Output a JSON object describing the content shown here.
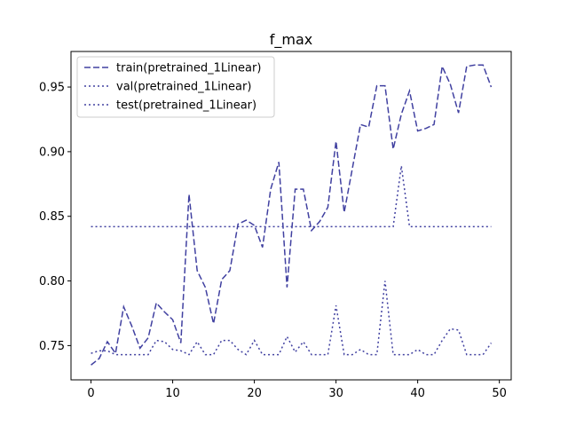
{
  "chart_data": {
    "type": "line",
    "title": "f_max",
    "xlabel": "",
    "ylabel": "",
    "xlim": [
      -2.45,
      51.45
    ],
    "ylim": [
      0.7235,
      0.9775
    ],
    "xticks": [
      0,
      10,
      20,
      30,
      40,
      50
    ],
    "yticks": [
      0.75,
      0.8,
      0.85,
      0.9,
      0.95
    ],
    "ytick_labels": [
      "0.75",
      "0.80",
      "0.85",
      "0.90",
      "0.95"
    ],
    "legend_position": "upper-left",
    "grid": false,
    "line_color": "#4040a0",
    "series": [
      {
        "name": "train(pretrained_1Linear)",
        "style": "dashed",
        "x": [
          0,
          1,
          2,
          3,
          4,
          5,
          6,
          7,
          8,
          9,
          10,
          11,
          12,
          13,
          14,
          15,
          16,
          17,
          18,
          19,
          20,
          21,
          22,
          23,
          24,
          25,
          26,
          27,
          28,
          29,
          30,
          31,
          32,
          33,
          34,
          35,
          36,
          37,
          38,
          39,
          40,
          41,
          42,
          43,
          44,
          45,
          46,
          47,
          48,
          49
        ],
        "values": [
          0.735,
          0.74,
          0.753,
          0.744,
          0.78,
          0.765,
          0.748,
          0.756,
          0.783,
          0.776,
          0.77,
          0.752,
          0.867,
          0.808,
          0.795,
          0.767,
          0.801,
          0.808,
          0.844,
          0.847,
          0.843,
          0.826,
          0.871,
          0.892,
          0.795,
          0.871,
          0.871,
          0.839,
          0.846,
          0.857,
          0.908,
          0.853,
          0.887,
          0.921,
          0.919,
          0.951,
          0.951,
          0.902,
          0.929,
          0.947,
          0.916,
          0.918,
          0.921,
          0.966,
          0.952,
          0.93,
          0.966,
          0.967,
          0.967,
          0.95
        ]
      },
      {
        "name": "val(pretrained_1Linear)",
        "style": "dotted",
        "x": [
          0,
          1,
          2,
          3,
          4,
          5,
          6,
          7,
          8,
          9,
          10,
          11,
          12,
          13,
          14,
          15,
          16,
          17,
          18,
          19,
          20,
          21,
          22,
          23,
          24,
          25,
          26,
          27,
          28,
          29,
          30,
          31,
          32,
          33,
          34,
          35,
          36,
          37,
          38,
          39,
          40,
          41,
          42,
          43,
          44,
          45,
          46,
          47,
          48,
          49
        ],
        "values": [
          0.842,
          0.842,
          0.842,
          0.842,
          0.842,
          0.842,
          0.842,
          0.842,
          0.842,
          0.842,
          0.842,
          0.842,
          0.842,
          0.842,
          0.842,
          0.842,
          0.842,
          0.842,
          0.842,
          0.842,
          0.842,
          0.842,
          0.842,
          0.842,
          0.842,
          0.842,
          0.842,
          0.842,
          0.842,
          0.842,
          0.842,
          0.842,
          0.842,
          0.842,
          0.842,
          0.842,
          0.842,
          0.842,
          0.889,
          0.842,
          0.842,
          0.842,
          0.842,
          0.842,
          0.842,
          0.842,
          0.842,
          0.842,
          0.842,
          0.842
        ]
      },
      {
        "name": "test(pretrained_1Linear)",
        "style": "dotted",
        "x": [
          0,
          1,
          2,
          3,
          4,
          5,
          6,
          7,
          8,
          9,
          10,
          11,
          12,
          13,
          14,
          15,
          16,
          17,
          18,
          19,
          20,
          21,
          22,
          23,
          24,
          25,
          26,
          27,
          28,
          29,
          30,
          31,
          32,
          33,
          34,
          35,
          36,
          37,
          38,
          39,
          40,
          41,
          42,
          43,
          44,
          45,
          46,
          47,
          48,
          49
        ],
        "values": [
          0.744,
          0.746,
          0.746,
          0.743,
          0.743,
          0.743,
          0.743,
          0.743,
          0.754,
          0.753,
          0.747,
          0.746,
          0.743,
          0.753,
          0.743,
          0.743,
          0.754,
          0.754,
          0.747,
          0.743,
          0.754,
          0.743,
          0.743,
          0.743,
          0.757,
          0.745,
          0.753,
          0.743,
          0.743,
          0.743,
          0.781,
          0.743,
          0.743,
          0.747,
          0.743,
          0.743,
          0.8,
          0.743,
          0.743,
          0.743,
          0.747,
          0.743,
          0.743,
          0.754,
          0.763,
          0.762,
          0.743,
          0.743,
          0.743,
          0.752
        ]
      }
    ]
  }
}
